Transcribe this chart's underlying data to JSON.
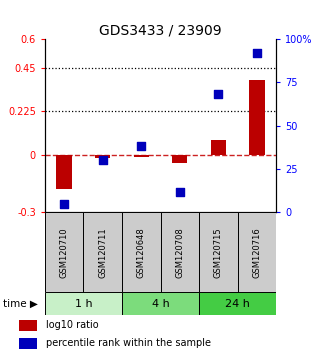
{
  "title": "GDS3433 / 23909",
  "samples": [
    "GSM120710",
    "GSM120711",
    "GSM120648",
    "GSM120708",
    "GSM120715",
    "GSM120716"
  ],
  "log10_ratio": [
    -0.18,
    -0.02,
    -0.01,
    -0.045,
    0.075,
    0.385
  ],
  "percentile_rank": [
    5,
    30,
    38,
    12,
    68,
    92
  ],
  "ylim_left": [
    -0.3,
    0.6
  ],
  "ylim_right": [
    0,
    100
  ],
  "yticks_left": [
    -0.3,
    0,
    0.225,
    0.45,
    0.6
  ],
  "ytick_labels_left": [
    "-0.3",
    "0",
    "0.225",
    "0.45",
    "0.6"
  ],
  "yticks_right": [
    0,
    25,
    50,
    75,
    100
  ],
  "ytick_labels_right": [
    "0",
    "25",
    "50",
    "75",
    "100%"
  ],
  "hlines_dotted": [
    0.225,
    0.45
  ],
  "hline_dashed": 0,
  "time_groups": [
    {
      "label": "1 h",
      "start": 0,
      "end": 2,
      "color": "#c8f0c8"
    },
    {
      "label": "4 h",
      "start": 2,
      "end": 4,
      "color": "#7cdc7c"
    },
    {
      "label": "24 h",
      "start": 4,
      "end": 6,
      "color": "#44cc44"
    }
  ],
  "bar_color": "#bb0000",
  "scatter_color": "#0000bb",
  "bar_width": 0.4,
  "scatter_size": 28,
  "label_log10": "log10 ratio",
  "label_percentile": "percentile rank within the sample",
  "time_label": "time",
  "title_fontsize": 10,
  "tick_fontsize": 7,
  "legend_fontsize": 7,
  "sample_fontsize": 6,
  "time_fontsize": 8
}
